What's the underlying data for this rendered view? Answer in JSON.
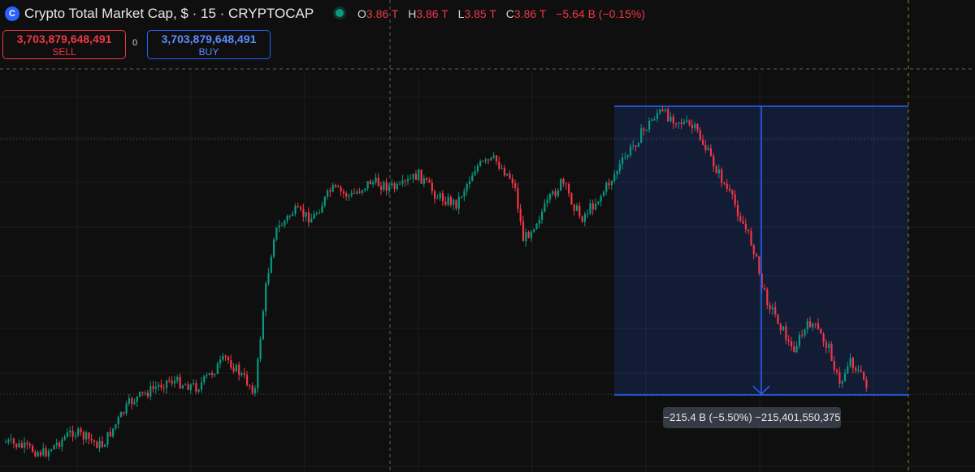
{
  "header": {
    "logo_letter": "C",
    "title": "Crypto Total Market Cap, $ · 15 · CRYPTOCAP",
    "ohlc": {
      "o_label": "O",
      "o_value": "3.86 T",
      "h_label": "H",
      "h_value": "3.86 T",
      "l_label": "L",
      "l_value": "3.85 T",
      "c_label": "C",
      "c_value": "3.86 T",
      "change": "−5.64 B (−0.15%)"
    }
  },
  "trade": {
    "sell_price": "3,703,879,648,491",
    "sell_label": "SELL",
    "spread": "0",
    "buy_price": "3,703,879,648,491",
    "buy_label": "BUY"
  },
  "measure": {
    "label": "−215.4 B (−5.50%) −215,401,550,375"
  },
  "colors": {
    "up": "#089981",
    "down": "#f23645",
    "accent": "#2962ff",
    "background": "#0f0f0f"
  },
  "chart_data": {
    "type": "candlestick",
    "points_hint": "approximate price path (relative units) used to draw candles",
    "path": [
      {
        "x": 0,
        "y": 0.05
      },
      {
        "x": 0.04,
        "y": 0.02
      },
      {
        "x": 0.07,
        "y": 0.08
      },
      {
        "x": 0.1,
        "y": 0.04
      },
      {
        "x": 0.13,
        "y": 0.16
      },
      {
        "x": 0.17,
        "y": 0.22
      },
      {
        "x": 0.2,
        "y": 0.2
      },
      {
        "x": 0.23,
        "y": 0.28
      },
      {
        "x": 0.25,
        "y": 0.22
      },
      {
        "x": 0.26,
        "y": 0.19
      },
      {
        "x": 0.27,
        "y": 0.45
      },
      {
        "x": 0.28,
        "y": 0.62
      },
      {
        "x": 0.3,
        "y": 0.68
      },
      {
        "x": 0.32,
        "y": 0.66
      },
      {
        "x": 0.34,
        "y": 0.74
      },
      {
        "x": 0.36,
        "y": 0.72
      },
      {
        "x": 0.38,
        "y": 0.76
      },
      {
        "x": 0.41,
        "y": 0.74
      },
      {
        "x": 0.43,
        "y": 0.78
      },
      {
        "x": 0.45,
        "y": 0.72
      },
      {
        "x": 0.47,
        "y": 0.7
      },
      {
        "x": 0.49,
        "y": 0.8
      },
      {
        "x": 0.51,
        "y": 0.82
      },
      {
        "x": 0.53,
        "y": 0.76
      },
      {
        "x": 0.54,
        "y": 0.6
      },
      {
        "x": 0.56,
        "y": 0.68
      },
      {
        "x": 0.58,
        "y": 0.76
      },
      {
        "x": 0.6,
        "y": 0.66
      },
      {
        "x": 0.62,
        "y": 0.72
      },
      {
        "x": 0.64,
        "y": 0.8
      },
      {
        "x": 0.66,
        "y": 0.88
      },
      {
        "x": 0.68,
        "y": 0.95
      },
      {
        "x": 0.7,
        "y": 0.93
      },
      {
        "x": 0.72,
        "y": 0.9
      },
      {
        "x": 0.74,
        "y": 0.8
      },
      {
        "x": 0.76,
        "y": 0.7
      },
      {
        "x": 0.78,
        "y": 0.58
      },
      {
        "x": 0.79,
        "y": 0.46
      },
      {
        "x": 0.81,
        "y": 0.36
      },
      {
        "x": 0.82,
        "y": 0.3
      },
      {
        "x": 0.84,
        "y": 0.38
      },
      {
        "x": 0.86,
        "y": 0.3
      },
      {
        "x": 0.87,
        "y": 0.2
      },
      {
        "x": 0.88,
        "y": 0.28
      },
      {
        "x": 0.9,
        "y": 0.2
      }
    ]
  }
}
